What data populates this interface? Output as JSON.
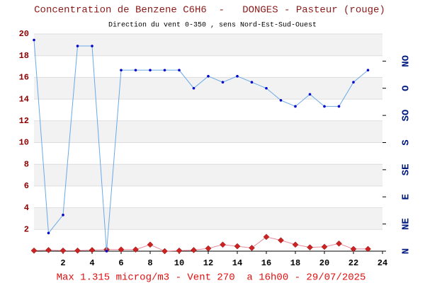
{
  "chart_data": {
    "type": "line",
    "title": "Concentration de Benzene C6H6  -   DONGES - Pasteur (rouge)",
    "subtitle": "Direction du vent 0-350 , sens Nord-Est-Sud-Ouest",
    "footer": "Max 1.315 microg/m3 - Vent 270  a 16h00 - 29/07/2025",
    "x": [
      0,
      1,
      2,
      3,
      4,
      5,
      6,
      7,
      8,
      9,
      10,
      11,
      12,
      13,
      14,
      15,
      16,
      17,
      18,
      19,
      20,
      21,
      22,
      23
    ],
    "xlim": [
      0,
      24
    ],
    "xticks": [
      2,
      4,
      6,
      8,
      10,
      12,
      14,
      16,
      18,
      20,
      22,
      24
    ],
    "ylim": [
      0,
      20
    ],
    "yticks": [
      2,
      4,
      6,
      8,
      10,
      12,
      14,
      16,
      18,
      20
    ],
    "y2lim": [
      0,
      360
    ],
    "y2ticks": [
      {
        "value": 0,
        "label": "N"
      },
      {
        "value": 45,
        "label": "NE"
      },
      {
        "value": 90,
        "label": "E"
      },
      {
        "value": 135,
        "label": "SE"
      },
      {
        "value": 180,
        "label": "S"
      },
      {
        "value": 225,
        "label": "SO"
      },
      {
        "value": 270,
        "label": "O"
      },
      {
        "value": 315,
        "label": "NO"
      }
    ],
    "grid": true,
    "series": [
      {
        "color": "#cc2222",
        "line_color": "#e88a9a",
        "marker": "diamond",
        "values": [
          0.05,
          0.1,
          0.05,
          0.05,
          0.1,
          0.15,
          0.15,
          0.15,
          0.6,
          0.0,
          0.05,
          0.1,
          0.25,
          0.6,
          0.45,
          0.3,
          1.315,
          1.0,
          0.6,
          0.35,
          0.4,
          0.7,
          0.2,
          0.2
        ]
      },
      {
        "color": "#0000cc",
        "line_color": "#6aa9e8",
        "marker": "dot",
        "axis": "y2",
        "values": [
          350,
          30,
          60,
          340,
          340,
          0,
          300,
          300,
          300,
          300,
          300,
          270,
          290,
          280,
          290,
          280,
          270,
          250,
          240,
          260,
          240,
          240,
          280,
          300
        ]
      }
    ]
  }
}
